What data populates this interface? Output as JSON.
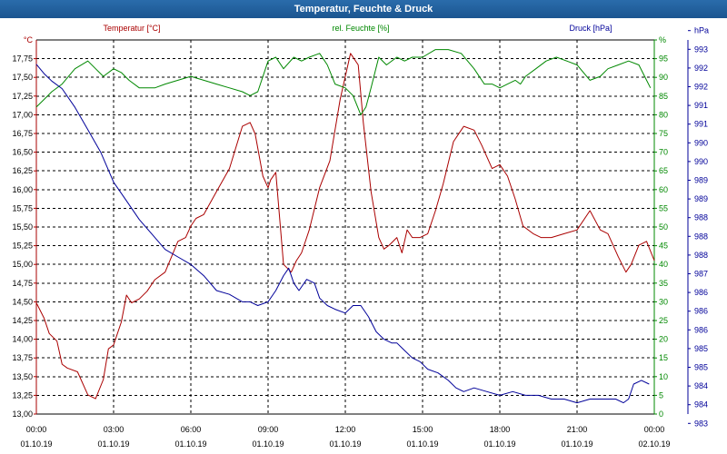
{
  "window": {
    "title": "Temperatur, Feuchte & Druck"
  },
  "chart_data": {
    "type": "line",
    "title": "Temperatur, Feuchte & Druck",
    "grid": true,
    "x_ticks": [
      {
        "time": "00:00",
        "date": "01.10.19"
      },
      {
        "time": "03:00",
        "date": "01.10.19"
      },
      {
        "time": "06:00",
        "date": "01.10.19"
      },
      {
        "time": "09:00",
        "date": "01.10.19"
      },
      {
        "time": "12:00",
        "date": "01.10.19"
      },
      {
        "time": "15:00",
        "date": "01.10.19"
      },
      {
        "time": "18:00",
        "date": "01.10.19"
      },
      {
        "time": "21:00",
        "date": "01.10.19"
      },
      {
        "time": "00:00",
        "date": "02.10.19"
      }
    ],
    "x_hours_range": [
      0,
      24
    ],
    "axes": {
      "temperature": {
        "label": "Temperatur [°C]",
        "unit": "°C",
        "color": "#aa0000",
        "ylim": [
          13.0,
          17.875
        ],
        "ticks": [
          "13,00",
          "13,25",
          "13,50",
          "13,75",
          "14,00",
          "14,25",
          "14,50",
          "14,75",
          "15,00",
          "15,25",
          "15,50",
          "15,75",
          "16,00",
          "16,25",
          "16,50",
          "16,75",
          "17,00",
          "17,25",
          "17,50",
          "17,75"
        ]
      },
      "humidity": {
        "label": "rel. Feuchte [%]",
        "unit": "%",
        "color": "#008800",
        "ylim": [
          0,
          97.5
        ],
        "ticks": [
          "0",
          "5",
          "10",
          "15",
          "20",
          "25",
          "30",
          "35",
          "40",
          "45",
          "50",
          "55",
          "60",
          "65",
          "70",
          "75",
          "80",
          "85",
          "90",
          "95",
          "%"
        ]
      },
      "pressure": {
        "label": "Druck [hPa]",
        "unit": "hPa",
        "color": "#000099",
        "ticks": [
          "983",
          "984",
          "984",
          "985",
          "985",
          "986",
          "986",
          "986",
          "987",
          "988",
          "988",
          "988",
          "989",
          "989",
          "990",
          "990",
          "991",
          "991",
          "992",
          "992",
          "993",
          "hPa"
        ]
      }
    },
    "series": [
      {
        "name": "Temperatur [°C]",
        "axis": "temperature",
        "color": "#aa0000",
        "x": [
          0,
          0.3,
          0.5,
          0.8,
          1.0,
          1.2,
          1.6,
          2.0,
          2.3,
          2.6,
          2.8,
          3.0,
          3.3,
          3.5,
          3.7,
          4.0,
          4.3,
          4.6,
          5.0,
          5.5,
          5.8,
          6.0,
          6.2,
          6.5,
          7.0,
          7.5,
          8.0,
          8.3,
          8.5,
          8.8,
          9.0,
          9.1,
          9.3,
          9.6,
          9.9,
          10.1,
          10.3,
          10.6,
          11.0,
          11.4,
          11.8,
          12.2,
          12.5,
          12.7,
          13.0,
          13.3,
          13.5,
          13.7,
          14.0,
          14.2,
          14.4,
          14.6,
          14.9,
          15.2,
          15.5,
          15.8,
          16.2,
          16.6,
          17.0,
          17.3,
          17.7,
          18.0,
          18.3,
          18.6,
          18.9,
          19.3,
          19.6,
          20.0,
          20.5,
          21.0,
          21.5,
          21.9,
          22.2,
          22.6,
          22.9,
          23.1,
          23.4,
          23.7,
          24.0
        ],
        "values": [
          14.45,
          14.25,
          14.05,
          13.95,
          13.65,
          13.6,
          13.55,
          13.25,
          13.2,
          13.45,
          13.85,
          13.9,
          14.2,
          14.55,
          14.45,
          14.5,
          14.6,
          14.75,
          14.85,
          15.25,
          15.3,
          15.45,
          15.55,
          15.6,
          15.9,
          16.2,
          16.75,
          16.8,
          16.65,
          16.1,
          15.95,
          16.05,
          16.15,
          14.95,
          14.85,
          15.0,
          15.1,
          15.4,
          15.95,
          16.3,
          17.1,
          17.7,
          17.55,
          16.8,
          15.9,
          15.3,
          15.15,
          15.2,
          15.3,
          15.1,
          15.4,
          15.3,
          15.3,
          15.35,
          15.65,
          16.0,
          16.55,
          16.75,
          16.7,
          16.5,
          16.2,
          16.25,
          16.1,
          15.8,
          15.45,
          15.35,
          15.3,
          15.3,
          15.35,
          15.4,
          15.65,
          15.4,
          15.35,
          15.05,
          14.85,
          14.95,
          15.2,
          15.25,
          15.0
        ]
      },
      {
        "name": "rel. Feuchte [%]",
        "axis": "humidity",
        "color": "#008800",
        "x": [
          0,
          0.3,
          0.6,
          1.0,
          1.5,
          2.0,
          2.3,
          2.6,
          3.0,
          3.3,
          3.6,
          4.0,
          4.3,
          4.6,
          5.0,
          5.5,
          6.0,
          6.5,
          7.0,
          7.5,
          8.0,
          8.3,
          8.6,
          9.0,
          9.3,
          9.6,
          10.0,
          10.3,
          10.6,
          11.0,
          11.3,
          11.6,
          12.0,
          12.3,
          12.6,
          12.8,
          13.0,
          13.3,
          13.6,
          14.0,
          14.3,
          14.6,
          15.0,
          15.5,
          16.0,
          16.5,
          17.0,
          17.4,
          17.7,
          18.0,
          18.3,
          18.6,
          18.8,
          19.0,
          19.4,
          19.8,
          20.2,
          20.6,
          21.0,
          21.5,
          21.9,
          22.2,
          22.6,
          23.0,
          23.4,
          23.7,
          23.85
        ],
        "values": [
          80,
          82,
          84,
          86,
          90,
          92,
          90,
          88,
          90,
          89,
          87,
          85,
          85,
          85,
          86,
          87,
          88,
          87,
          86,
          85,
          84,
          83,
          84,
          92,
          93,
          90,
          93,
          92,
          93,
          94,
          91,
          86,
          85,
          83,
          78,
          80,
          85,
          93,
          91,
          93,
          92,
          93,
          93,
          95,
          95,
          94,
          90,
          86,
          86,
          85,
          86,
          87,
          86,
          88,
          90,
          92,
          93,
          92,
          91,
          87,
          88,
          90,
          91,
          92,
          91,
          87,
          85
        ]
      },
      {
        "name": "Druck [hPa]",
        "axis": "pressure",
        "color": "#000099",
        "x": [
          0,
          0.3,
          0.6,
          1.0,
          1.5,
          2.0,
          2.5,
          3.0,
          3.5,
          4.0,
          4.5,
          5.0,
          5.5,
          6.0,
          6.5,
          7.0,
          7.5,
          8.0,
          8.3,
          8.6,
          9.0,
          9.3,
          9.6,
          9.8,
          10.0,
          10.2,
          10.5,
          10.8,
          11.0,
          11.3,
          11.6,
          12.0,
          12.3,
          12.6,
          12.9,
          13.2,
          13.5,
          13.8,
          14.0,
          14.3,
          14.6,
          14.9,
          15.2,
          15.6,
          16.0,
          16.3,
          16.6,
          17.0,
          17.5,
          18.0,
          18.5,
          19.0,
          19.5,
          20.0,
          20.5,
          21.0,
          21.5,
          22.0,
          22.5,
          22.8,
          23.0,
          23.2,
          23.5,
          23.8
        ],
        "values": [
          93.5,
          91,
          89,
          87,
          82,
          76,
          70,
          62,
          57,
          52,
          48,
          44,
          42,
          40,
          37,
          33,
          32,
          30,
          30,
          29,
          30,
          33,
          37,
          39,
          35,
          33,
          36,
          35,
          31,
          29,
          28,
          27,
          29,
          29,
          26,
          22,
          20,
          19,
          19,
          17,
          15,
          14,
          12,
          11,
          9,
          7,
          6,
          7,
          6,
          5,
          6,
          5,
          5,
          4,
          4,
          3,
          4,
          4,
          4,
          3,
          4,
          8,
          9,
          8
        ]
      }
    ]
  }
}
